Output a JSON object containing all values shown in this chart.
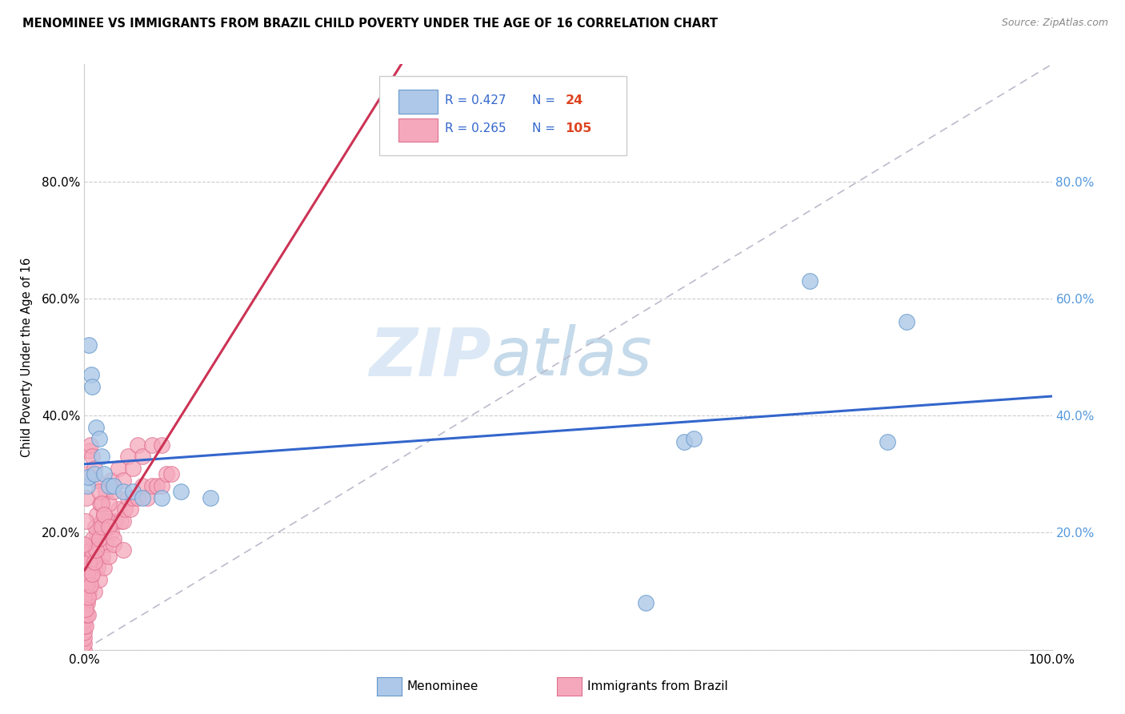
{
  "title": "MENOMINEE VS IMMIGRANTS FROM BRAZIL CHILD POVERTY UNDER THE AGE OF 16 CORRELATION CHART",
  "source": "Source: ZipAtlas.com",
  "ylabel": "Child Poverty Under the Age of 16",
  "menominee_color": "#adc8e8",
  "brazil_color": "#f5a8bc",
  "menominee_edge": "#6699cc",
  "brazil_edge": "#e07090",
  "trendline_menominee_color": "#3366cc",
  "trendline_brazil_color": "#cc3355",
  "trendline_dashed_color": "#cc8899",
  "watermark_color": "#dce8f5",
  "watermark_text": "ZIPatlas",
  "menominee_x": [
    0.003,
    0.004,
    0.005,
    0.007,
    0.008,
    0.01,
    0.012,
    0.015,
    0.018,
    0.02,
    0.025,
    0.03,
    0.04,
    0.05,
    0.06,
    0.08,
    0.1,
    0.13,
    0.58,
    0.62,
    0.63,
    0.75,
    0.83,
    0.85
  ],
  "menominee_y": [
    0.28,
    0.295,
    0.52,
    0.47,
    0.45,
    0.3,
    0.38,
    0.36,
    0.33,
    0.3,
    0.28,
    0.28,
    0.27,
    0.27,
    0.26,
    0.26,
    0.27,
    0.26,
    0.08,
    0.355,
    0.36,
    0.63,
    0.355,
    0.56
  ],
  "brazil_x": [
    0.0,
    0.0,
    0.0,
    0.0,
    0.0,
    0.0,
    0.0,
    0.0,
    0.0,
    0.0,
    0.001,
    0.001,
    0.001,
    0.002,
    0.002,
    0.003,
    0.003,
    0.004,
    0.004,
    0.005,
    0.005,
    0.006,
    0.007,
    0.008,
    0.009,
    0.01,
    0.01,
    0.011,
    0.012,
    0.013,
    0.014,
    0.015,
    0.015,
    0.016,
    0.018,
    0.019,
    0.02,
    0.02,
    0.022,
    0.023,
    0.025,
    0.026,
    0.028,
    0.03,
    0.032,
    0.035,
    0.038,
    0.04,
    0.042,
    0.045,
    0.048,
    0.05,
    0.055,
    0.06,
    0.065,
    0.07,
    0.075,
    0.08,
    0.085,
    0.09,
    0.0,
    0.001,
    0.002,
    0.003,
    0.004,
    0.005,
    0.006,
    0.007,
    0.008,
    0.009,
    0.01,
    0.011,
    0.012,
    0.013,
    0.015,
    0.016,
    0.018,
    0.02,
    0.022,
    0.025,
    0.028,
    0.03,
    0.035,
    0.04,
    0.045,
    0.05,
    0.055,
    0.06,
    0.07,
    0.08,
    0.0,
    0.001,
    0.002,
    0.003,
    0.005,
    0.006,
    0.008,
    0.01,
    0.012,
    0.015,
    0.018,
    0.02,
    0.025,
    0.03,
    0.04
  ],
  "brazil_y": [
    0.0,
    0.01,
    0.02,
    0.03,
    0.04,
    0.05,
    0.06,
    0.07,
    0.08,
    0.14,
    0.04,
    0.08,
    0.12,
    0.06,
    0.1,
    0.08,
    0.14,
    0.06,
    0.12,
    0.1,
    0.16,
    0.12,
    0.14,
    0.16,
    0.18,
    0.1,
    0.14,
    0.18,
    0.16,
    0.2,
    0.14,
    0.12,
    0.18,
    0.2,
    0.22,
    0.16,
    0.14,
    0.2,
    0.18,
    0.22,
    0.16,
    0.22,
    0.2,
    0.18,
    0.22,
    0.24,
    0.22,
    0.22,
    0.24,
    0.26,
    0.24,
    0.26,
    0.26,
    0.28,
    0.26,
    0.28,
    0.28,
    0.28,
    0.3,
    0.3,
    0.09,
    0.07,
    0.11,
    0.13,
    0.09,
    0.15,
    0.11,
    0.17,
    0.13,
    0.19,
    0.15,
    0.21,
    0.17,
    0.23,
    0.19,
    0.25,
    0.21,
    0.23,
    0.27,
    0.25,
    0.29,
    0.27,
    0.31,
    0.29,
    0.33,
    0.31,
    0.35,
    0.33,
    0.35,
    0.35,
    0.18,
    0.22,
    0.26,
    0.3,
    0.34,
    0.35,
    0.33,
    0.31,
    0.29,
    0.27,
    0.25,
    0.23,
    0.21,
    0.19,
    0.17
  ],
  "xlim": [
    0.0,
    1.0
  ],
  "ylim": [
    0.0,
    1.0
  ],
  "ytick_positions": [
    0.0,
    0.2,
    0.4,
    0.6,
    0.8
  ],
  "ytick_labels_left": [
    "",
    "20.0%",
    "40.0%",
    "60.0%",
    "80.0%"
  ],
  "ytick_labels_right": [
    "",
    "20.0%",
    "40.0%",
    "60.0%",
    "80.0%"
  ],
  "xtick_left_label": "0.0%",
  "xtick_right_label": "100.0%"
}
